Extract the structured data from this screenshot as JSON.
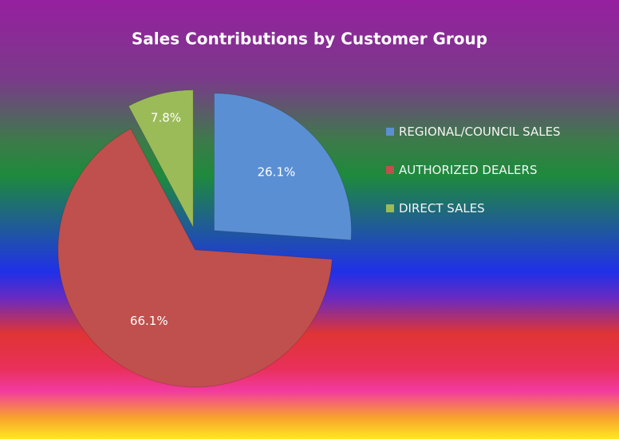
{
  "chart_data": {
    "type": "pie",
    "title": "Sales Contributions by Customer Group",
    "categories": [
      "REGIONAL/COUNCIL SALES",
      "AUTHORIZED DEALERS",
      "DIRECT SALES"
    ],
    "values": [
      26.1,
      66.1,
      7.8
    ],
    "value_labels": [
      "26.1%",
      "66.1%",
      "7.8%"
    ],
    "colors": [
      "#5b8fd4",
      "#c0504d",
      "#9bbb59"
    ],
    "legend": "right"
  }
}
